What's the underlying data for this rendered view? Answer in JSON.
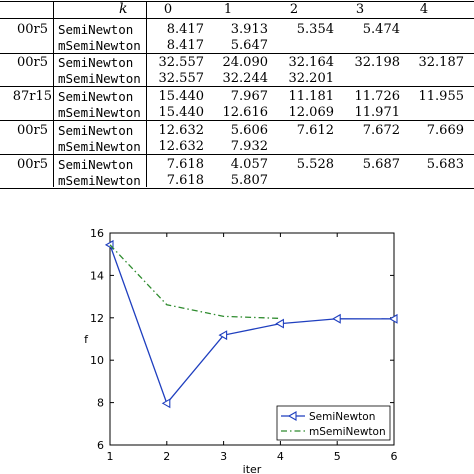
{
  "table": {
    "header": {
      "k_label": "k",
      "columns": [
        "0",
        "1",
        "2",
        "3",
        "4"
      ]
    },
    "groups": [
      {
        "problem": "00r5",
        "rows": [
          {
            "method": "SemiNewton",
            "values": [
              "8.417",
              "3.913",
              "5.354",
              "5.474",
              ""
            ]
          },
          {
            "method": "mSemiNewton",
            "values": [
              "8.417",
              "5.647",
              "",
              "",
              ""
            ]
          }
        ]
      },
      {
        "problem": "00r5",
        "rows": [
          {
            "method": "SemiNewton",
            "values": [
              "32.557",
              "24.090",
              "32.164",
              "32.198",
              "32.187"
            ]
          },
          {
            "method": "mSemiNewton",
            "values": [
              "32.557",
              "32.244",
              "32.201",
              "",
              ""
            ]
          }
        ]
      },
      {
        "problem": "87r15",
        "rows": [
          {
            "method": "SemiNewton",
            "values": [
              "15.440",
              "7.967",
              "11.181",
              "11.726",
              "11.955"
            ]
          },
          {
            "method": "mSemiNewton",
            "values": [
              "15.440",
              "12.616",
              "12.069",
              "11.971",
              ""
            ]
          }
        ]
      },
      {
        "problem": "00r5",
        "rows": [
          {
            "method": "SemiNewton",
            "values": [
              "12.632",
              "5.606",
              "7.612",
              "7.672",
              "7.669"
            ]
          },
          {
            "method": "mSemiNewton",
            "values": [
              "12.632",
              "7.932",
              "",
              "",
              ""
            ]
          }
        ]
      },
      {
        "problem": "00r5",
        "rows": [
          {
            "method": "SemiNewton",
            "values": [
              "7.618",
              "4.057",
              "5.528",
              "5.687",
              "5.683"
            ]
          },
          {
            "method": "mSemiNewton",
            "values": [
              "7.618",
              "5.807",
              "",
              "",
              ""
            ]
          }
        ]
      }
    ]
  },
  "chart_data": {
    "type": "line",
    "xlabel": "iter",
    "ylabel": "f",
    "xlim": [
      1,
      6
    ],
    "ylim": [
      6,
      16
    ],
    "xticks": [
      "1",
      "2",
      "3",
      "4",
      "5",
      "6"
    ],
    "yticks": [
      "6",
      "8",
      "10",
      "12",
      "14",
      "16"
    ],
    "grid": false,
    "legend_position": "bottom-right",
    "series": [
      {
        "name": "SemiNewton",
        "x": [
          1,
          2,
          3,
          4,
          5,
          6
        ],
        "y": [
          15.44,
          7.967,
          11.181,
          11.726,
          11.955,
          11.95
        ],
        "color": "#1f3fbf",
        "style": "solid",
        "marker": "triangle-left"
      },
      {
        "name": "mSemiNewton",
        "x": [
          1,
          2,
          3,
          4
        ],
        "y": [
          15.44,
          12.616,
          12.069,
          11.971
        ],
        "color": "#2e8b2e",
        "style": "dash-dot",
        "marker": "none"
      }
    ]
  }
}
